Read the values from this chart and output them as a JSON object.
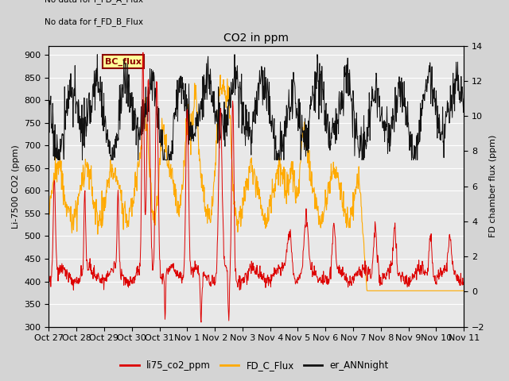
{
  "title": "CO2 in ppm",
  "ylabel_left": "Li-7500 CO2 (ppm)",
  "ylabel_right": "FD chamber flux (ppm)",
  "ylim_left": [
    300,
    920
  ],
  "ylim_right": [
    -2,
    14
  ],
  "yticks_left": [
    300,
    350,
    400,
    450,
    500,
    550,
    600,
    650,
    700,
    750,
    800,
    850,
    900
  ],
  "yticks_right": [
    -2,
    0,
    2,
    4,
    6,
    8,
    10,
    12,
    14
  ],
  "xtick_labels": [
    "Oct 27",
    "Oct 28",
    "Oct 29",
    "Oct 30",
    "Oct 31",
    "Nov 1",
    "Nov 2",
    "Nov 3",
    "Nov 4",
    "Nov 5",
    "Nov 6",
    "Nov 7",
    "Nov 8",
    "Nov 9",
    "Nov 10",
    "Nov 11"
  ],
  "no_data_text_1": "No data for f_FD_A_Flux",
  "no_data_text_2": "No data for f_FD_B_Flux",
  "bc_flux_label": "BC_flux",
  "legend_labels": [
    "li75_co2_ppm",
    "FD_C_Flux",
    "er_ANNnight"
  ],
  "legend_colors": [
    "#dd0000",
    "#ffaa00",
    "#111111"
  ],
  "line_colors_li75": "#dd0000",
  "line_colors_fd_c": "#ffaa00",
  "line_colors_er": "#111111",
  "bg_color": "#e8e8e8",
  "fig_bg": "#d4d4d4",
  "n_days": 15,
  "n_pts_per_day": 72,
  "seed": 17
}
